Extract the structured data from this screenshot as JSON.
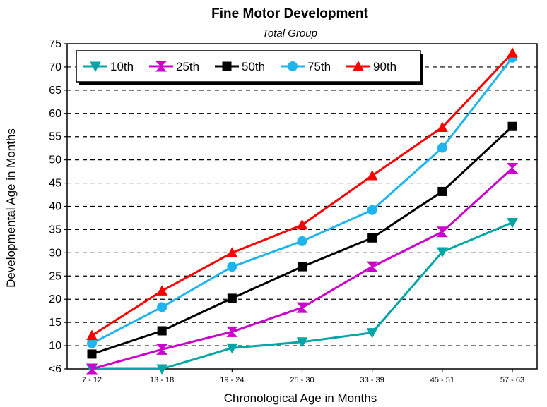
{
  "chart_data": {
    "type": "line",
    "title": "Fine Motor Development",
    "subtitle": "Total Group",
    "xlabel": "Chronological Age in Months",
    "ylabel": "Developmental Age in Months",
    "categories": [
      "7 - 12",
      "13 - 18",
      "19 - 24",
      "25 - 30",
      "33 - 39",
      "45 - 51",
      "57 - 63"
    ],
    "yticks": [
      "<6",
      "10",
      "15",
      "20",
      "25",
      "30",
      "35",
      "40",
      "45",
      "50",
      "55",
      "60",
      "65",
      "70",
      "75"
    ],
    "ylim": [
      5,
      75
    ],
    "grid": "horizontal dashed",
    "legend_position": "top-left",
    "series": [
      {
        "name": "10th",
        "color": "#00A5A5",
        "marker": "triangle-down",
        "values": [
          5,
          5,
          9.5,
          10.8,
          12.8,
          30.2,
          36.5
        ]
      },
      {
        "name": "25th",
        "color": "#CC00CC",
        "marker": "hourglass",
        "values": [
          5,
          9.2,
          13,
          18.2,
          27,
          34.5,
          48.2
        ]
      },
      {
        "name": "50th",
        "color": "#000000",
        "marker": "square",
        "values": [
          8.2,
          13.2,
          20.2,
          27,
          33.2,
          43.2,
          57.2
        ]
      },
      {
        "name": "75th",
        "color": "#1EB4F0",
        "marker": "circle",
        "values": [
          10.5,
          18.3,
          27,
          32.5,
          39.2,
          52.6,
          72
        ]
      },
      {
        "name": "90th",
        "color": "#FF0000",
        "marker": "triangle-up",
        "values": [
          12.2,
          21.8,
          30,
          36,
          46.6,
          57,
          73
        ]
      }
    ]
  }
}
